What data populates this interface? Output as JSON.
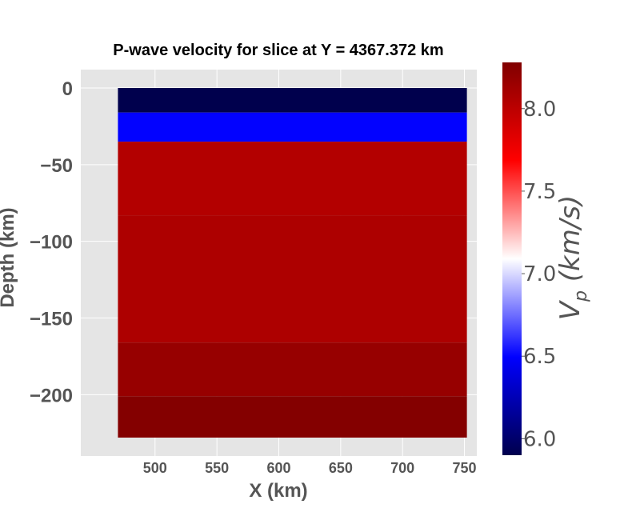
{
  "chart_data": {
    "type": "heatmap",
    "title": "P-wave velocity for slice at Y = 4367.372 km",
    "xlabel": "X (km)",
    "ylabel": "Depth (km)",
    "xlim": [
      440,
      760
    ],
    "ylim": [
      -240,
      12
    ],
    "x_extent": [
      470,
      752
    ],
    "x_ticks": [
      500,
      550,
      600,
      650,
      700,
      750
    ],
    "y_ticks": [
      0,
      -50,
      -100,
      -150,
      -200
    ],
    "grid": true,
    "layers": [
      {
        "top": 0,
        "bottom": -16,
        "vp": 5.8
      },
      {
        "top": -16,
        "bottom": -35,
        "vp": 6.5
      },
      {
        "top": -35,
        "bottom": -83,
        "vp": 8.04
      },
      {
        "top": -83,
        "bottom": -166,
        "vp": 8.07
      },
      {
        "top": -166,
        "bottom": -201,
        "vp": 8.17
      },
      {
        "top": -201,
        "bottom": -228,
        "vp": 8.26
      }
    ],
    "colorbar": {
      "label_main": "V",
      "label_sub": "p",
      "label_unit": " (km/s)",
      "colormap": "seismic_r",
      "range": [
        5.9,
        8.28
      ],
      "ticks": [
        "6.0",
        "6.5",
        "7.0",
        "7.5",
        "8.0"
      ]
    },
    "colors": {
      "panel_background": "#e5e5e5",
      "grid": "#ffffff",
      "text": "#555555"
    }
  }
}
